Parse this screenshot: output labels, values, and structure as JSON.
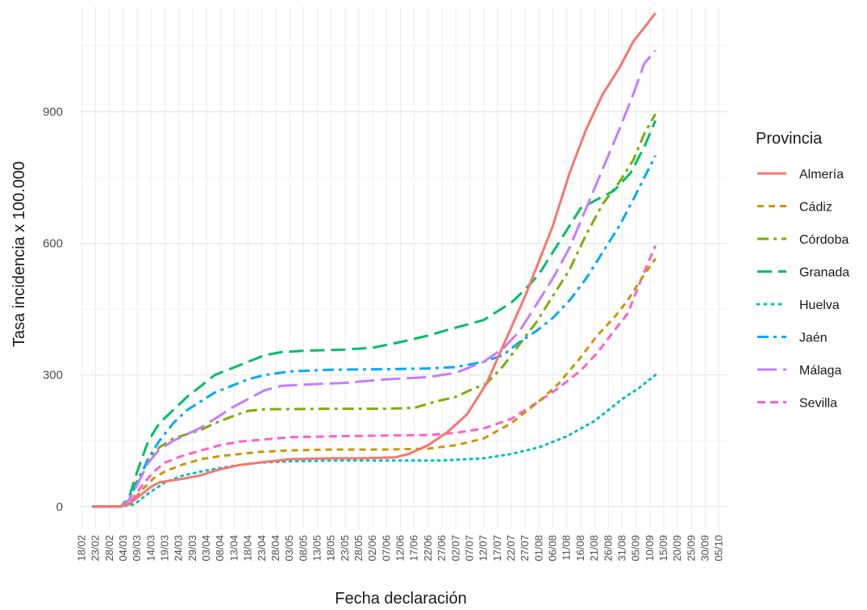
{
  "chart_data": {
    "type": "line",
    "xlabel": "Fecha declaración",
    "ylabel": "Tasa incidencia x 100.000",
    "x_ticks": [
      "18/02",
      "23/02",
      "28/02",
      "04/03",
      "09/03",
      "14/03",
      "19/03",
      "24/03",
      "29/03",
      "03/04",
      "08/04",
      "13/04",
      "18/04",
      "23/04",
      "28/04",
      "03/05",
      "08/05",
      "13/05",
      "18/05",
      "23/05",
      "28/05",
      "02/06",
      "07/06",
      "12/06",
      "17/06",
      "22/06",
      "27/06",
      "02/07",
      "07/07",
      "12/07",
      "17/07",
      "22/07",
      "27/07",
      "01/08",
      "06/08",
      "11/08",
      "16/08",
      "21/08",
      "26/08",
      "31/08",
      "05/09",
      "10/09",
      "15/09",
      "20/09",
      "25/09",
      "30/09",
      "05/10"
    ],
    "y_ticks": [
      0,
      300,
      600,
      900
    ],
    "ylim": [
      -50,
      1140
    ],
    "grid": true,
    "legend": {
      "title": "Provincia",
      "position": "right"
    },
    "series": [
      {
        "name": "Almería",
        "color": "#F8766D",
        "dash": "solid",
        "points": [
          [
            4,
            0
          ],
          [
            14,
            0
          ],
          [
            17,
            5
          ],
          [
            21,
            25
          ],
          [
            25,
            45
          ],
          [
            28,
            55
          ],
          [
            35,
            62
          ],
          [
            42,
            70
          ],
          [
            50,
            85
          ],
          [
            57,
            95
          ],
          [
            64,
            100
          ],
          [
            75,
            108
          ],
          [
            90,
            110
          ],
          [
            100,
            110
          ],
          [
            113,
            112
          ],
          [
            118,
            120
          ],
          [
            125,
            140
          ],
          [
            132,
            170
          ],
          [
            139,
            210
          ],
          [
            146,
            280
          ],
          [
            153,
            380
          ],
          [
            160,
            480
          ],
          [
            165,
            560
          ],
          [
            170,
            640
          ],
          [
            176,
            760
          ],
          [
            182,
            860
          ],
          [
            188,
            940
          ],
          [
            194,
            1000
          ],
          [
            199,
            1060
          ],
          [
            204,
            1100
          ],
          [
            207,
            1125
          ]
        ]
      },
      {
        "name": "Cádiz",
        "color": "#CD9600",
        "dash": "8,6",
        "points": [
          [
            4,
            0
          ],
          [
            14,
            0
          ],
          [
            18,
            10
          ],
          [
            22,
            40
          ],
          [
            26,
            65
          ],
          [
            30,
            80
          ],
          [
            36,
            95
          ],
          [
            43,
            108
          ],
          [
            50,
            115
          ],
          [
            57,
            120
          ],
          [
            65,
            125
          ],
          [
            75,
            128
          ],
          [
            90,
            130
          ],
          [
            110,
            130
          ],
          [
            125,
            132
          ],
          [
            135,
            140
          ],
          [
            145,
            155
          ],
          [
            155,
            190
          ],
          [
            165,
            240
          ],
          [
            172,
            280
          ],
          [
            180,
            340
          ],
          [
            186,
            390
          ],
          [
            192,
            430
          ],
          [
            197,
            470
          ],
          [
            202,
            520
          ],
          [
            207,
            565
          ]
        ]
      },
      {
        "name": "Córdoba",
        "color": "#7CAE00",
        "dash": "14,6,4,6",
        "points": [
          [
            4,
            0
          ],
          [
            14,
            0
          ],
          [
            17,
            15
          ],
          [
            20,
            60
          ],
          [
            24,
            105
          ],
          [
            28,
            135
          ],
          [
            33,
            155
          ],
          [
            38,
            165
          ],
          [
            43,
            175
          ],
          [
            48,
            190
          ],
          [
            54,
            205
          ],
          [
            60,
            218
          ],
          [
            66,
            222
          ],
          [
            75,
            222
          ],
          [
            90,
            223
          ],
          [
            110,
            223
          ],
          [
            120,
            225
          ],
          [
            128,
            240
          ],
          [
            135,
            250
          ],
          [
            140,
            265
          ],
          [
            146,
            280
          ],
          [
            152,
            320
          ],
          [
            158,
            370
          ],
          [
            164,
            420
          ],
          [
            170,
            480
          ],
          [
            176,
            540
          ],
          [
            182,
            620
          ],
          [
            188,
            690
          ],
          [
            194,
            740
          ],
          [
            199,
            790
          ],
          [
            203,
            850
          ],
          [
            207,
            895
          ]
        ]
      },
      {
        "name": "Granada",
        "color": "#00BE67",
        "dash": "18,8",
        "points": [
          [
            4,
            0
          ],
          [
            14,
            0
          ],
          [
            17,
            20
          ],
          [
            20,
            80
          ],
          [
            24,
            150
          ],
          [
            28,
            190
          ],
          [
            33,
            220
          ],
          [
            38,
            250
          ],
          [
            43,
            275
          ],
          [
            48,
            300
          ],
          [
            54,
            315
          ],
          [
            60,
            330
          ],
          [
            66,
            345
          ],
          [
            72,
            352
          ],
          [
            80,
            355
          ],
          [
            95,
            358
          ],
          [
            105,
            362
          ],
          [
            115,
            375
          ],
          [
            125,
            390
          ],
          [
            135,
            408
          ],
          [
            145,
            425
          ],
          [
            155,
            465
          ],
          [
            160,
            495
          ],
          [
            165,
            530
          ],
          [
            170,
            580
          ],
          [
            175,
            630
          ],
          [
            180,
            680
          ],
          [
            186,
            700
          ],
          [
            192,
            720
          ],
          [
            198,
            760
          ],
          [
            203,
            820
          ],
          [
            207,
            880
          ]
        ]
      },
      {
        "name": "Huelva",
        "color": "#00BFC4",
        "dash": "2,6",
        "points": [
          [
            4,
            0
          ],
          [
            14,
            0
          ],
          [
            19,
            5
          ],
          [
            24,
            30
          ],
          [
            30,
            55
          ],
          [
            36,
            70
          ],
          [
            43,
            80
          ],
          [
            50,
            88
          ],
          [
            57,
            95
          ],
          [
            64,
            100
          ],
          [
            75,
            103
          ],
          [
            90,
            105
          ],
          [
            110,
            105
          ],
          [
            130,
            105
          ],
          [
            145,
            110
          ],
          [
            155,
            120
          ],
          [
            165,
            135
          ],
          [
            175,
            160
          ],
          [
            185,
            195
          ],
          [
            195,
            245
          ],
          [
            201,
            270
          ],
          [
            207,
            300
          ]
        ]
      },
      {
        "name": "Jaén",
        "color": "#00A9FF",
        "dash": "14,6,4,6",
        "points": [
          [
            4,
            0
          ],
          [
            14,
            0
          ],
          [
            17,
            15
          ],
          [
            20,
            55
          ],
          [
            24,
            110
          ],
          [
            28,
            150
          ],
          [
            33,
            190
          ],
          [
            38,
            220
          ],
          [
            43,
            240
          ],
          [
            48,
            260
          ],
          [
            54,
            275
          ],
          [
            60,
            290
          ],
          [
            66,
            300
          ],
          [
            75,
            308
          ],
          [
            90,
            312
          ],
          [
            110,
            313
          ],
          [
            125,
            315
          ],
          [
            135,
            318
          ],
          [
            145,
            330
          ],
          [
            152,
            345
          ],
          [
            158,
            375
          ],
          [
            164,
            400
          ],
          [
            170,
            430
          ],
          [
            176,
            470
          ],
          [
            182,
            520
          ],
          [
            188,
            580
          ],
          [
            194,
            640
          ],
          [
            199,
            700
          ],
          [
            203,
            750
          ],
          [
            207,
            800
          ]
        ]
      },
      {
        "name": "Málaga",
        "color": "#C77CFF",
        "dash": "24,8",
        "points": [
          [
            4,
            0
          ],
          [
            14,
            0
          ],
          [
            17,
            15
          ],
          [
            20,
            50
          ],
          [
            24,
            100
          ],
          [
            28,
            130
          ],
          [
            33,
            150
          ],
          [
            38,
            165
          ],
          [
            43,
            180
          ],
          [
            48,
            200
          ],
          [
            54,
            225
          ],
          [
            60,
            245
          ],
          [
            66,
            265
          ],
          [
            72,
            275
          ],
          [
            80,
            278
          ],
          [
            95,
            282
          ],
          [
            110,
            290
          ],
          [
            125,
            295
          ],
          [
            135,
            305
          ],
          [
            145,
            330
          ],
          [
            152,
            360
          ],
          [
            158,
            400
          ],
          [
            164,
            460
          ],
          [
            170,
            520
          ],
          [
            176,
            590
          ],
          [
            182,
            680
          ],
          [
            188,
            770
          ],
          [
            194,
            860
          ],
          [
            199,
            940
          ],
          [
            203,
            1010
          ],
          [
            207,
            1040
          ]
        ]
      },
      {
        "name": "Sevilla",
        "color": "#FF61CC",
        "dash": "10,6",
        "points": [
          [
            4,
            0
          ],
          [
            14,
            0
          ],
          [
            18,
            15
          ],
          [
            22,
            50
          ],
          [
            26,
            80
          ],
          [
            30,
            100
          ],
          [
            36,
            115
          ],
          [
            43,
            128
          ],
          [
            50,
            140
          ],
          [
            57,
            148
          ],
          [
            64,
            152
          ],
          [
            75,
            158
          ],
          [
            90,
            160
          ],
          [
            110,
            162
          ],
          [
            125,
            163
          ],
          [
            135,
            168
          ],
          [
            145,
            178
          ],
          [
            155,
            200
          ],
          [
            165,
            240
          ],
          [
            172,
            270
          ],
          [
            180,
            310
          ],
          [
            186,
            350
          ],
          [
            192,
            400
          ],
          [
            197,
            440
          ],
          [
            202,
            520
          ],
          [
            207,
            595
          ]
        ]
      }
    ]
  }
}
